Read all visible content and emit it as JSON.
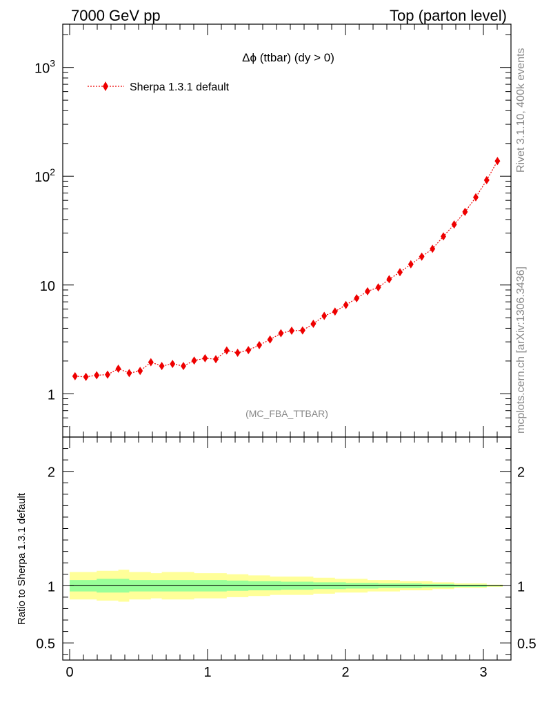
{
  "header": {
    "left": "7000 GeV pp",
    "right": "Top (parton level)"
  },
  "side_text": {
    "rivet": "Rivet 3.1.10,  400k events",
    "mcplots": "mcplots.cern.ch [arXiv:1306.3436]"
  },
  "analysis_label": "(MC_FBA_TTBAR)",
  "chart_data": [
    {
      "type": "line",
      "title": "Δϕ (ttbar) (dy > 0)",
      "yscale": "log",
      "xlim": [
        -0.05,
        3.2
      ],
      "ylim": [
        0.4,
        2500
      ],
      "yticks_major": [
        1,
        10,
        100,
        1000
      ],
      "ytick_labels": [
        "1",
        "10",
        "10^2",
        "10^3"
      ],
      "legend_position": "top-left",
      "series": [
        {
          "name": "Sherpa 1.3.1 default",
          "color": "#ee0000",
          "marker": "diamond",
          "x": [
            0.039,
            0.118,
            0.196,
            0.275,
            0.353,
            0.432,
            0.511,
            0.589,
            0.668,
            0.746,
            0.825,
            0.903,
            0.982,
            1.06,
            1.139,
            1.218,
            1.296,
            1.375,
            1.453,
            1.532,
            1.61,
            1.689,
            1.767,
            1.846,
            1.924,
            2.003,
            2.081,
            2.16,
            2.238,
            2.317,
            2.395,
            2.474,
            2.553,
            2.631,
            2.71,
            2.788,
            2.867,
            2.945,
            3.024,
            3.102
          ],
          "y": [
            1.45,
            1.43,
            1.48,
            1.5,
            1.7,
            1.55,
            1.62,
            1.95,
            1.8,
            1.88,
            1.8,
            2.02,
            2.12,
            2.08,
            2.5,
            2.38,
            2.52,
            2.8,
            3.15,
            3.6,
            3.8,
            3.82,
            4.4,
            5.2,
            5.7,
            6.55,
            7.55,
            8.75,
            9.5,
            11.3,
            13.1,
            15.5,
            18.2,
            21.5,
            28.0,
            36.0,
            47.0,
            64.0,
            92.0,
            138.0
          ]
        }
      ]
    },
    {
      "type": "area",
      "ylabel": "Ratio to Sherpa 1.3.1 default",
      "xlim": [
        -0.05,
        3.2
      ],
      "ylim": [
        0.35,
        2.3
      ],
      "xticks": [
        0,
        1,
        2,
        3
      ],
      "yticks": [
        0.5,
        1,
        2
      ],
      "reference_line": 1,
      "bands": [
        {
          "color": "#ffff99",
          "x": [
            0.0,
            0.118,
            0.196,
            0.275,
            0.353,
            0.432,
            0.511,
            0.589,
            0.668,
            0.746,
            0.825,
            0.903,
            0.982,
            1.06,
            1.139,
            1.218,
            1.296,
            1.375,
            1.453,
            1.532,
            1.61,
            1.689,
            1.767,
            1.846,
            1.924,
            2.003,
            2.081,
            2.16,
            2.238,
            2.317,
            2.395,
            2.474,
            2.553,
            2.631,
            2.71,
            2.788,
            2.867,
            2.945,
            3.024,
            3.14
          ],
          "upper": [
            1.12,
            1.12,
            1.13,
            1.13,
            1.14,
            1.12,
            1.12,
            1.11,
            1.12,
            1.12,
            1.12,
            1.11,
            1.11,
            1.11,
            1.1,
            1.1,
            1.09,
            1.09,
            1.08,
            1.08,
            1.08,
            1.08,
            1.07,
            1.07,
            1.06,
            1.06,
            1.06,
            1.05,
            1.05,
            1.05,
            1.04,
            1.04,
            1.04,
            1.03,
            1.03,
            1.02,
            1.02,
            1.02,
            1.01,
            1.01
          ],
          "lower": [
            0.88,
            0.88,
            0.87,
            0.87,
            0.86,
            0.88,
            0.88,
            0.89,
            0.88,
            0.88,
            0.88,
            0.89,
            0.89,
            0.89,
            0.9,
            0.9,
            0.91,
            0.91,
            0.92,
            0.92,
            0.92,
            0.92,
            0.93,
            0.93,
            0.94,
            0.94,
            0.94,
            0.95,
            0.95,
            0.95,
            0.96,
            0.96,
            0.96,
            0.97,
            0.97,
            0.98,
            0.98,
            0.98,
            0.99,
            0.99
          ]
        },
        {
          "color": "#99ff99",
          "x": [
            0.0,
            0.118,
            0.196,
            0.275,
            0.353,
            0.432,
            0.511,
            0.589,
            0.668,
            0.746,
            0.825,
            0.903,
            0.982,
            1.06,
            1.139,
            1.218,
            1.296,
            1.375,
            1.453,
            1.532,
            1.61,
            1.689,
            1.767,
            1.846,
            1.924,
            2.003,
            2.081,
            2.16,
            2.238,
            2.317,
            2.395,
            2.474,
            2.553,
            2.631,
            2.71,
            2.788,
            2.867,
            2.945,
            3.024,
            3.14
          ],
          "upper": [
            1.05,
            1.05,
            1.06,
            1.06,
            1.06,
            1.05,
            1.05,
            1.05,
            1.05,
            1.05,
            1.05,
            1.05,
            1.05,
            1.05,
            1.045,
            1.045,
            1.04,
            1.04,
            1.04,
            1.035,
            1.035,
            1.035,
            1.03,
            1.03,
            1.03,
            1.025,
            1.025,
            1.025,
            1.02,
            1.02,
            1.02,
            1.02,
            1.015,
            1.015,
            1.015,
            1.01,
            1.01,
            1.01,
            1.005,
            1.005
          ],
          "lower": [
            0.95,
            0.95,
            0.94,
            0.94,
            0.94,
            0.95,
            0.95,
            0.95,
            0.95,
            0.95,
            0.95,
            0.95,
            0.95,
            0.95,
            0.955,
            0.955,
            0.96,
            0.96,
            0.96,
            0.965,
            0.965,
            0.965,
            0.97,
            0.97,
            0.97,
            0.975,
            0.975,
            0.975,
            0.98,
            0.98,
            0.98,
            0.98,
            0.985,
            0.985,
            0.985,
            0.99,
            0.99,
            0.99,
            0.995,
            0.995
          ]
        }
      ]
    }
  ]
}
